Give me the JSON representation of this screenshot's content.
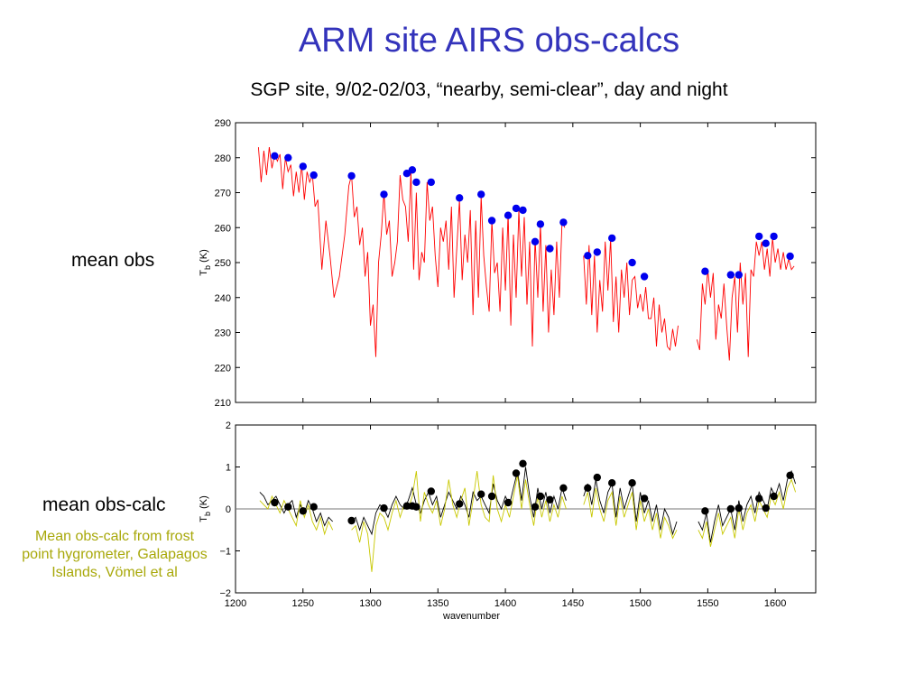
{
  "title": "ARM site AIRS obs-calcs",
  "subtitle": "SGP site, 9/02-02/03, “nearby, semi-clear”, day and night",
  "labels": {
    "mean_obs": "mean obs",
    "mean_obs_calc": "mean obs-calc",
    "note": "Mean obs-calc from frost point hygrometer, Galapagos Islands, Vömel et al"
  },
  "colors": {
    "title": "#3333bb",
    "obs_line": "#ff0000",
    "obs_dots": "#0000ee",
    "diff_line_black": "#000000",
    "diff_line_yellow": "#c8c800",
    "diff_dots": "#000000",
    "note": "#a8a80a"
  },
  "chart_data": [
    {
      "type": "line",
      "ylabel": "T_b (K)",
      "xlim": [
        1200,
        1630
      ],
      "ylim": [
        210,
        290
      ],
      "yticks": [
        210,
        220,
        230,
        240,
        250,
        260,
        270,
        280,
        290
      ],
      "grid": false,
      "series": [
        {
          "style": "red-line",
          "x": [
            1217,
            1219,
            1221,
            1223,
            1225,
            1227,
            1229,
            1231,
            1233,
            1235,
            1237,
            1239,
            1241,
            1243,
            1245,
            1247,
            1249,
            1251,
            1253,
            1255,
            1257,
            1259,
            1261,
            1264,
            1267,
            1270,
            1273,
            1277,
            1281,
            1284,
            1286,
            1288,
            1290,
            1292,
            1294,
            1296,
            1298,
            1300,
            1302,
            1304,
            1306,
            1308,
            1310,
            1312,
            1314,
            1316,
            1318,
            1320,
            1322,
            1324,
            1326,
            1328,
            1330,
            1332,
            1334,
            1336,
            1338,
            1340,
            1342,
            1344,
            1346,
            1348,
            1350,
            1352,
            1354,
            1356,
            1358,
            1360,
            1362,
            1364,
            1366,
            1368,
            1370,
            1372,
            1374,
            1376,
            1378,
            1380,
            1382,
            1384,
            1386,
            1388,
            1390,
            1392,
            1394,
            1396,
            1398,
            1400,
            1402,
            1404,
            1406,
            1408,
            1410,
            1412,
            1414,
            1416,
            1418,
            1420,
            1422,
            1424,
            1426,
            1428,
            1430,
            1432,
            1434,
            1436,
            1438,
            1440,
            1442,
            1444,
            1458,
            1460,
            1462,
            1464,
            1466,
            1468,
            1470,
            1472,
            1474,
            1476,
            1478,
            1480,
            1482,
            1484,
            1486,
            1488,
            1490,
            1492,
            1494,
            1496,
            1498,
            1500,
            1502,
            1504,
            1506,
            1508,
            1510,
            1512,
            1514,
            1516,
            1518,
            1520,
            1522,
            1524,
            1526,
            1528,
            1542,
            1544,
            1546,
            1548,
            1550,
            1552,
            1554,
            1556,
            1558,
            1560,
            1562,
            1564,
            1566,
            1568,
            1570,
            1572,
            1574,
            1576,
            1578,
            1580,
            1582,
            1584,
            1586,
            1588,
            1590,
            1592,
            1594,
            1596,
            1598,
            1600,
            1602,
            1604,
            1606,
            1608,
            1610,
            1612,
            1614
          ],
          "y": [
            283,
            273,
            282,
            275,
            283,
            277,
            281,
            279,
            281,
            271,
            280,
            276,
            278,
            269,
            276,
            270,
            278,
            268,
            276,
            273,
            275,
            266,
            268,
            248,
            262,
            252,
            240,
            246,
            258,
            272,
            275,
            263,
            266,
            255,
            260,
            246,
            253,
            232,
            238,
            223,
            250,
            258,
            270,
            258,
            262,
            246,
            250,
            256,
            275,
            268,
            266,
            256,
            276,
            248,
            270,
            245,
            253,
            250,
            273,
            262,
            266,
            252,
            243,
            260,
            256,
            262,
            248,
            266,
            240,
            254,
            268,
            245,
            258,
            250,
            265,
            235,
            262,
            240,
            269,
            252,
            243,
            236,
            262,
            247,
            250,
            236,
            260,
            242,
            264,
            232,
            258,
            240,
            265,
            246,
            263,
            238,
            256,
            226,
            257,
            240,
            261,
            236,
            255,
            230,
            248,
            235,
            256,
            240,
            262,
            260,
            252,
            238,
            255,
            235,
            252,
            230,
            245,
            236,
            256,
            242,
            257,
            233,
            246,
            230,
            248,
            240,
            250,
            235,
            245,
            246,
            237,
            241,
            236,
            243,
            234,
            234,
            240,
            226,
            238,
            230,
            234,
            226,
            225,
            231,
            226,
            232,
            228,
            225,
            244,
            238,
            248,
            240,
            247,
            228,
            238,
            234,
            244,
            232,
            222,
            240,
            246,
            230,
            250,
            238,
            247,
            223,
            248,
            246,
            256,
            252,
            256,
            248,
            254,
            246,
            257,
            250,
            254,
            248,
            253,
            248,
            251,
            248,
            249
          ],
          "name": ""
        },
        {
          "style": "blue-dots",
          "x": [
            1229,
            1239,
            1250,
            1258,
            1286,
            1310,
            1327,
            1331,
            1334,
            1345,
            1366,
            1382,
            1390,
            1402,
            1408,
            1413,
            1422,
            1426,
            1433,
            1443,
            1461,
            1468,
            1479,
            1494,
            1503,
            1548,
            1567,
            1573,
            1588,
            1593,
            1599,
            1611
          ],
          "y": [
            280.5,
            280,
            277.5,
            275,
            274.8,
            269.5,
            275.5,
            276.5,
            273,
            273,
            268.5,
            269.5,
            262,
            263.5,
            265.5,
            265,
            256,
            261,
            254,
            261.5,
            252,
            253,
            257,
            250,
            246,
            247.5,
            246.5,
            246.5,
            257.5,
            255.5,
            257.5,
            251.8
          ],
          "name": ""
        }
      ]
    },
    {
      "type": "line",
      "xlabel": "wavenumber",
      "ylabel": "T_b (K)",
      "xlim": [
        1200,
        1630
      ],
      "ylim": [
        -2,
        2
      ],
      "yticks": [
        -2,
        -1,
        0,
        1,
        2
      ],
      "xticks": [
        1200,
        1250,
        1300,
        1350,
        1400,
        1450,
        1500,
        1550,
        1600
      ],
      "zero_line": true,
      "grid": false,
      "series": [
        {
          "style": "black-line",
          "x": [
            1218,
            1221,
            1224,
            1227,
            1230,
            1233,
            1236,
            1239,
            1242,
            1245,
            1248,
            1251,
            1254,
            1257,
            1260,
            1263,
            1266,
            1269,
            1272,
            1286,
            1289,
            1292,
            1295,
            1298,
            1301,
            1304,
            1307,
            1310,
            1313,
            1316,
            1319,
            1322,
            1325,
            1328,
            1331,
            1334,
            1337,
            1340,
            1343,
            1346,
            1349,
            1352,
            1355,
            1358,
            1361,
            1364,
            1367,
            1370,
            1373,
            1376,
            1379,
            1382,
            1385,
            1388,
            1391,
            1394,
            1397,
            1400,
            1403,
            1406,
            1409,
            1412,
            1415,
            1418,
            1421,
            1424,
            1427,
            1430,
            1433,
            1436,
            1439,
            1442,
            1445,
            1458,
            1461,
            1464,
            1467,
            1470,
            1473,
            1476,
            1479,
            1482,
            1485,
            1488,
            1491,
            1494,
            1497,
            1500,
            1503,
            1506,
            1509,
            1512,
            1515,
            1518,
            1521,
            1524,
            1527,
            1543,
            1546,
            1549,
            1552,
            1555,
            1558,
            1561,
            1564,
            1567,
            1570,
            1573,
            1576,
            1579,
            1582,
            1585,
            1588,
            1591,
            1594,
            1597,
            1600,
            1603,
            1606,
            1609,
            1612,
            1615
          ],
          "y": [
            0.4,
            0.3,
            0.1,
            0.2,
            0.3,
            0.1,
            -0.1,
            0.1,
            0.2,
            -0.2,
            0.1,
            -0.1,
            0.2,
            0.0,
            -0.3,
            -0.1,
            -0.4,
            -0.2,
            -0.3,
            -0.3,
            -0.2,
            -0.5,
            -0.2,
            -0.4,
            -0.6,
            -0.1,
            0.1,
            0.0,
            -0.2,
            0.1,
            0.3,
            0.1,
            0.0,
            0.2,
            0.5,
            0.1,
            -0.1,
            0.2,
            0.4,
            0.1,
            0.3,
            -0.2,
            0.1,
            0.4,
            0.2,
            0.0,
            0.3,
            0.1,
            -0.2,
            0.4,
            0.2,
            0.3,
            0.1,
            -0.1,
            0.6,
            0.2,
            0.0,
            0.3,
            0.1,
            0.5,
            0.9,
            0.2,
            1.0,
            0.3,
            -0.2,
            0.5,
            0.0,
            0.4,
            -0.1,
            0.3,
            0.0,
            0.5,
            0.2,
            0.3,
            0.6,
            0.1,
            0.7,
            0.2,
            -0.1,
            0.4,
            0.6,
            -0.2,
            0.5,
            0.0,
            0.3,
            0.6,
            -0.3,
            0.4,
            -0.1,
            0.2,
            -0.3,
            0.1,
            -0.5,
            0.0,
            -0.2,
            -0.6,
            -0.3,
            -0.3,
            -0.5,
            -0.1,
            -0.8,
            -0.3,
            0.1,
            -0.4,
            -0.2,
            0.0,
            -0.5,
            0.2,
            -0.3,
            0.1,
            0.3,
            -0.1,
            0.4,
            0.2,
            0.0,
            0.5,
            0.3,
            0.6,
            0.2,
            0.7,
            0.9,
            0.6
          ],
          "name": ""
        },
        {
          "style": "yellow-line",
          "x": [
            1218,
            1221,
            1224,
            1227,
            1230,
            1233,
            1236,
            1239,
            1242,
            1245,
            1248,
            1251,
            1254,
            1257,
            1260,
            1263,
            1266,
            1269,
            1272,
            1286,
            1289,
            1292,
            1295,
            1298,
            1301,
            1304,
            1307,
            1310,
            1313,
            1316,
            1319,
            1322,
            1325,
            1328,
            1331,
            1334,
            1337,
            1340,
            1343,
            1346,
            1349,
            1352,
            1355,
            1358,
            1361,
            1364,
            1367,
            1370,
            1373,
            1376,
            1379,
            1382,
            1385,
            1388,
            1391,
            1394,
            1397,
            1400,
            1403,
            1406,
            1409,
            1412,
            1415,
            1418,
            1421,
            1424,
            1427,
            1430,
            1433,
            1436,
            1439,
            1442,
            1445,
            1458,
            1461,
            1464,
            1467,
            1470,
            1473,
            1476,
            1479,
            1482,
            1485,
            1488,
            1491,
            1494,
            1497,
            1500,
            1503,
            1506,
            1509,
            1512,
            1515,
            1518,
            1521,
            1524,
            1527,
            1543,
            1546,
            1549,
            1552,
            1555,
            1558,
            1561,
            1564,
            1567,
            1570,
            1573,
            1576,
            1579,
            1582,
            1585,
            1588,
            1591,
            1594,
            1597,
            1600,
            1603,
            1606,
            1609,
            1612,
            1615
          ],
          "y": [
            0.2,
            0.1,
            0.0,
            0.3,
            0.1,
            -0.1,
            0.2,
            0.0,
            -0.2,
            -0.4,
            0.2,
            -0.2,
            0.1,
            -0.3,
            -0.5,
            -0.2,
            -0.6,
            -0.3,
            -0.5,
            -0.5,
            -0.4,
            -0.8,
            -0.3,
            -0.6,
            -1.5,
            -0.4,
            -0.1,
            -0.2,
            -0.5,
            -0.1,
            0.2,
            -0.2,
            0.1,
            0.0,
            0.3,
            0.9,
            -0.3,
            0.4,
            0.1,
            -0.1,
            0.2,
            -0.4,
            0.0,
            0.7,
            0.1,
            -0.2,
            0.2,
            0.5,
            -0.4,
            0.2,
            0.9,
            0.1,
            -0.2,
            -0.3,
            0.8,
            0.0,
            -0.3,
            0.1,
            -0.2,
            0.3,
            0.8,
            0.0,
            0.7,
            0.1,
            -0.4,
            0.3,
            -0.2,
            0.2,
            -0.3,
            0.1,
            -0.2,
            0.3,
            0.0,
            0.1,
            0.4,
            -0.2,
            0.5,
            0.0,
            -0.3,
            0.2,
            0.4,
            -0.4,
            0.3,
            -0.2,
            0.1,
            0.4,
            -0.5,
            0.2,
            -0.3,
            0.0,
            -0.5,
            -0.1,
            -0.7,
            -0.2,
            -0.4,
            -0.7,
            -0.5,
            -0.5,
            -0.7,
            -0.3,
            -0.9,
            -0.5,
            -0.1,
            -0.6,
            -0.4,
            -0.2,
            -0.7,
            0.0,
            -0.5,
            -0.1,
            0.1,
            -0.3,
            0.2,
            0.0,
            -0.2,
            0.3,
            0.1,
            0.4,
            0.0,
            0.5,
            0.7,
            0.4
          ],
          "name": ""
        },
        {
          "style": "black-dots",
          "x": [
            1229,
            1239,
            1250,
            1258,
            1286,
            1310,
            1327,
            1331,
            1334,
            1345,
            1366,
            1382,
            1390,
            1402,
            1408,
            1413,
            1422,
            1426,
            1433,
            1443,
            1461,
            1468,
            1479,
            1494,
            1503,
            1548,
            1567,
            1573,
            1588,
            1593,
            1599,
            1611
          ],
          "y": [
            0.15,
            0.05,
            -0.05,
            0.05,
            -0.28,
            0.02,
            0.07,
            0.07,
            0.05,
            0.42,
            0.12,
            0.35,
            0.3,
            0.15,
            0.85,
            1.08,
            0.05,
            0.3,
            0.22,
            0.5,
            0.5,
            0.75,
            0.62,
            0.62,
            0.25,
            -0.05,
            0.0,
            0.02,
            0.25,
            0.02,
            0.3,
            0.8
          ],
          "name": ""
        }
      ]
    }
  ]
}
